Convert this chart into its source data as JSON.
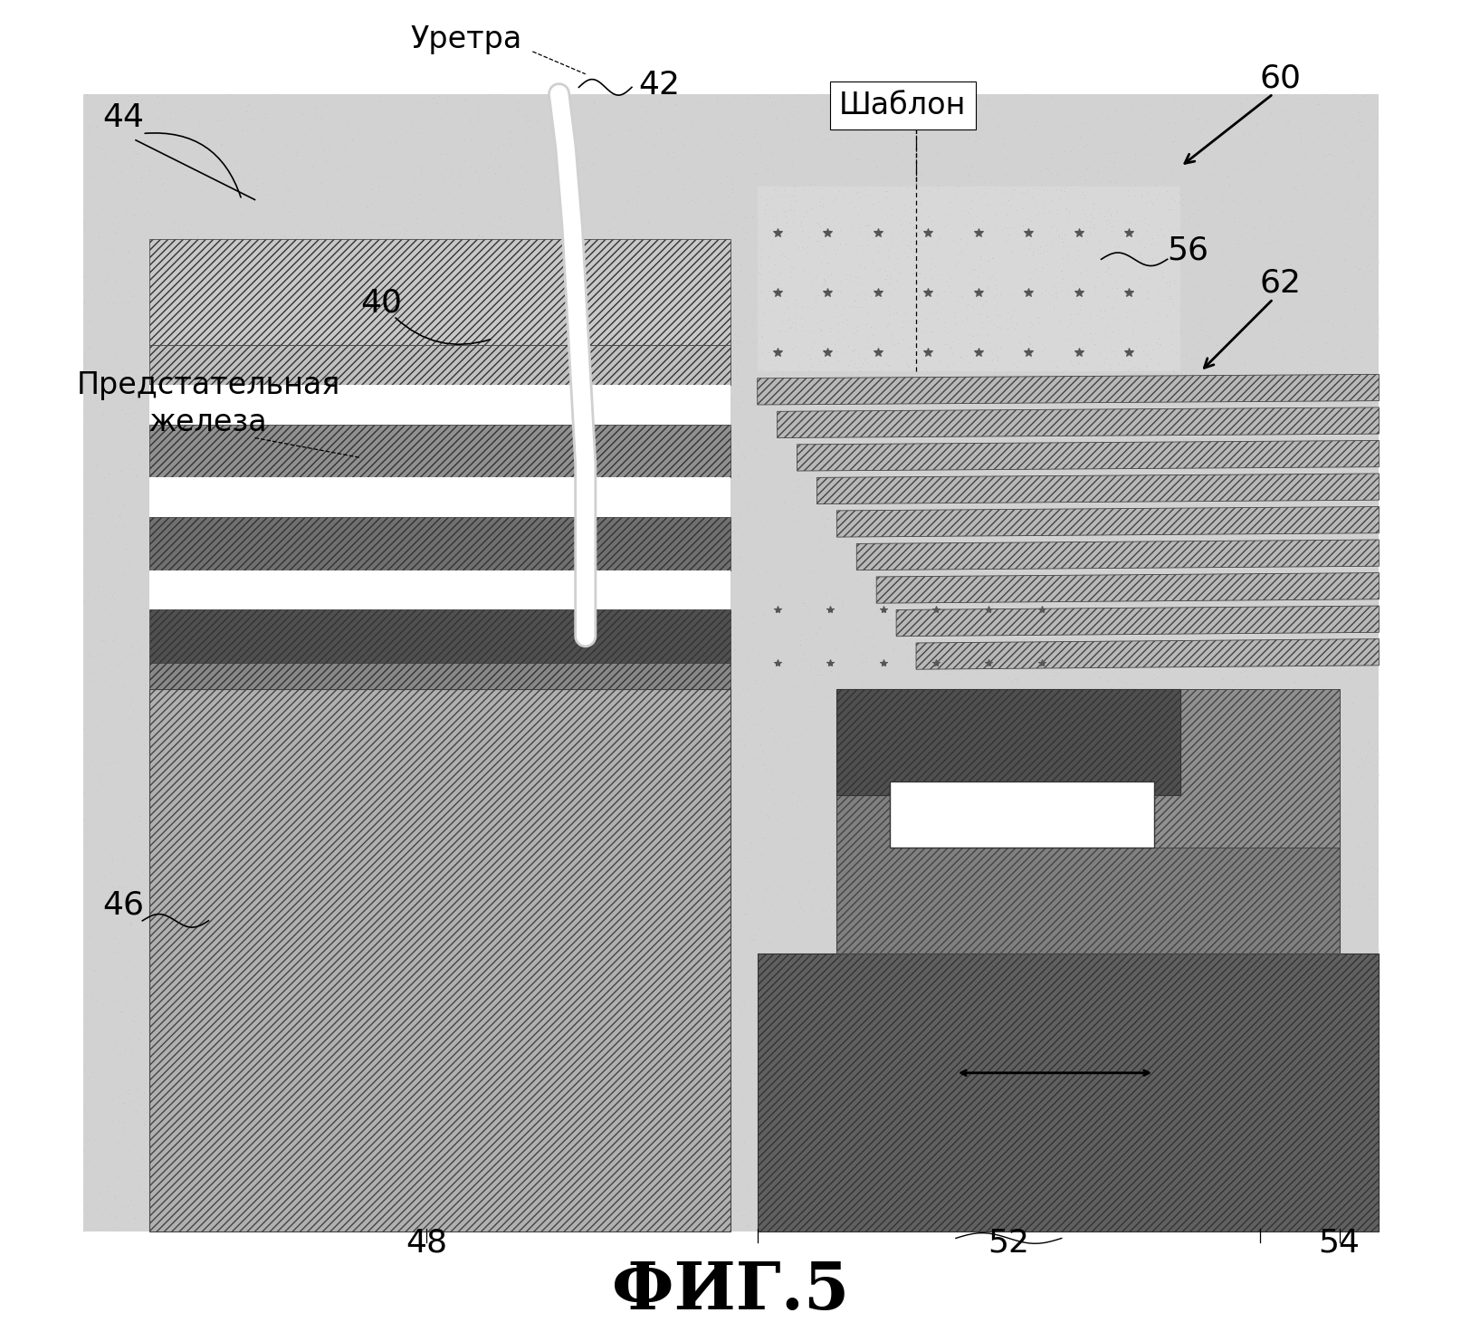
{
  "title": "ФИГ.5",
  "title_fontsize": 52,
  "bg_color": "#ffffff",
  "labels": {
    "urethra_text": "Уретра",
    "prostate_text": "Предстательная\nжелеза",
    "template_text": "Шаблон",
    "n40": "40",
    "n42": "42",
    "n44": "44",
    "n46": "46",
    "n48": "48",
    "n52": "52",
    "n54": "54",
    "n56": "56",
    "n60": "60",
    "n62": "62"
  },
  "label_fontsize": 24,
  "ann_fontsize": 26,
  "stipple_bg": "#cccccc",
  "body_left_color": "#c8c8c8",
  "prostate_hatch_color": "#888888",
  "rectum_color": "#909090",
  "dark_band_color": "#555555",
  "needle_color": "#b0b0b0",
  "probe_dark": "#606060",
  "probe_mid": "#808080"
}
